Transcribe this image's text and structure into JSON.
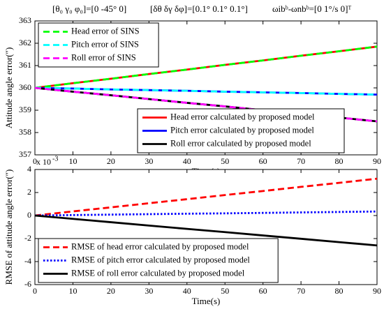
{
  "annotations": [
    "[θ₀ γ₀ φ₀]=[0 -45° 0]",
    "[δθ δγ δφ]=[0.1° 0.1° 0.1°]",
    "ωibᵇ-ωnbᵇ=[0 1°/s 0]ᵀ"
  ],
  "chart_data": [
    {
      "type": "line",
      "y_label": "Attitude angle error(″)",
      "x_label": "Time(s)",
      "x": [
        0,
        10,
        20,
        30,
        40,
        50,
        60,
        70,
        80,
        90
      ],
      "xlim": [
        0,
        90
      ],
      "xticks": [
        0,
        10,
        20,
        30,
        40,
        50,
        60,
        70,
        80,
        90
      ],
      "ylim": [
        357,
        363
      ],
      "yticks": [
        357,
        358,
        359,
        360,
        361,
        362,
        363
      ],
      "series": [
        {
          "name": "Head error calculated by proposed model",
          "color": "#ff0000",
          "dash": "solid",
          "legend": "lower center",
          "values": [
            360,
            360.21,
            360.41,
            360.62,
            360.82,
            361.03,
            361.23,
            361.44,
            361.64,
            361.85
          ]
        },
        {
          "name": "Pitch error calculated by proposed model",
          "color": "#0000ff",
          "dash": "solid",
          "legend": "lower center",
          "values": [
            360,
            359.97,
            359.93,
            359.9,
            359.87,
            359.83,
            359.8,
            359.77,
            359.73,
            359.7
          ]
        },
        {
          "name": "Roll error calculated by proposed model",
          "color": "#000000",
          "dash": "solid",
          "legend": "lower center",
          "values": [
            360,
            359.83,
            359.67,
            359.5,
            359.33,
            359.17,
            359.0,
            358.83,
            358.67,
            358.5
          ]
        },
        {
          "name": "Head error of SINS",
          "color": "#00ff00",
          "dash": "dashed",
          "legend": "upper left",
          "values": [
            360,
            360.21,
            360.41,
            360.62,
            360.82,
            361.03,
            361.23,
            361.44,
            361.64,
            361.85
          ]
        },
        {
          "name": "Pitch error of SINS",
          "color": "#00ffff",
          "dash": "dashed",
          "legend": "upper left",
          "values": [
            360,
            359.97,
            359.93,
            359.9,
            359.87,
            359.83,
            359.8,
            359.77,
            359.73,
            359.7
          ]
        },
        {
          "name": "Roll error of SINS",
          "color": "#ff00ff",
          "dash": "dashed",
          "legend": "upper left",
          "values": [
            360,
            359.83,
            359.67,
            359.5,
            359.33,
            359.17,
            359.0,
            358.83,
            358.67,
            358.5
          ]
        }
      ]
    },
    {
      "type": "line",
      "y_label": "RMSE of attitude angle error(″)",
      "x_label": "Time(s)",
      "y_scale_label": "x 10",
      "y_scale_exponent": "-3",
      "x": [
        0,
        10,
        20,
        30,
        40,
        50,
        60,
        70,
        80,
        90
      ],
      "xlim": [
        0,
        90
      ],
      "xticks": [
        0,
        10,
        20,
        30,
        40,
        50,
        60,
        70,
        80,
        90
      ],
      "ylim": [
        -6,
        4
      ],
      "yticks": [
        -6,
        -4,
        -2,
        0,
        2,
        4
      ],
      "series": [
        {
          "name": "RMSE of head error calculated by proposed model",
          "color": "#ff0000",
          "dash": "dashed",
          "legend": "lower left",
          "values": [
            0,
            0.36,
            0.71,
            1.07,
            1.42,
            1.78,
            2.13,
            2.49,
            2.84,
            3.2
          ]
        },
        {
          "name": "RMSE of pitch error calculated by proposed model",
          "color": "#0000ff",
          "dash": "dotted",
          "legend": "lower left",
          "values": [
            0,
            0.04,
            0.08,
            0.12,
            0.16,
            0.19,
            0.23,
            0.27,
            0.31,
            0.35
          ]
        },
        {
          "name": "RMSE of roll error calculated by proposed model",
          "color": "#000000",
          "dash": "solid",
          "legend": "lower left",
          "values": [
            0,
            -0.29,
            -0.58,
            -0.87,
            -1.16,
            -1.44,
            -1.73,
            -2.02,
            -2.31,
            -2.6
          ]
        }
      ]
    }
  ]
}
